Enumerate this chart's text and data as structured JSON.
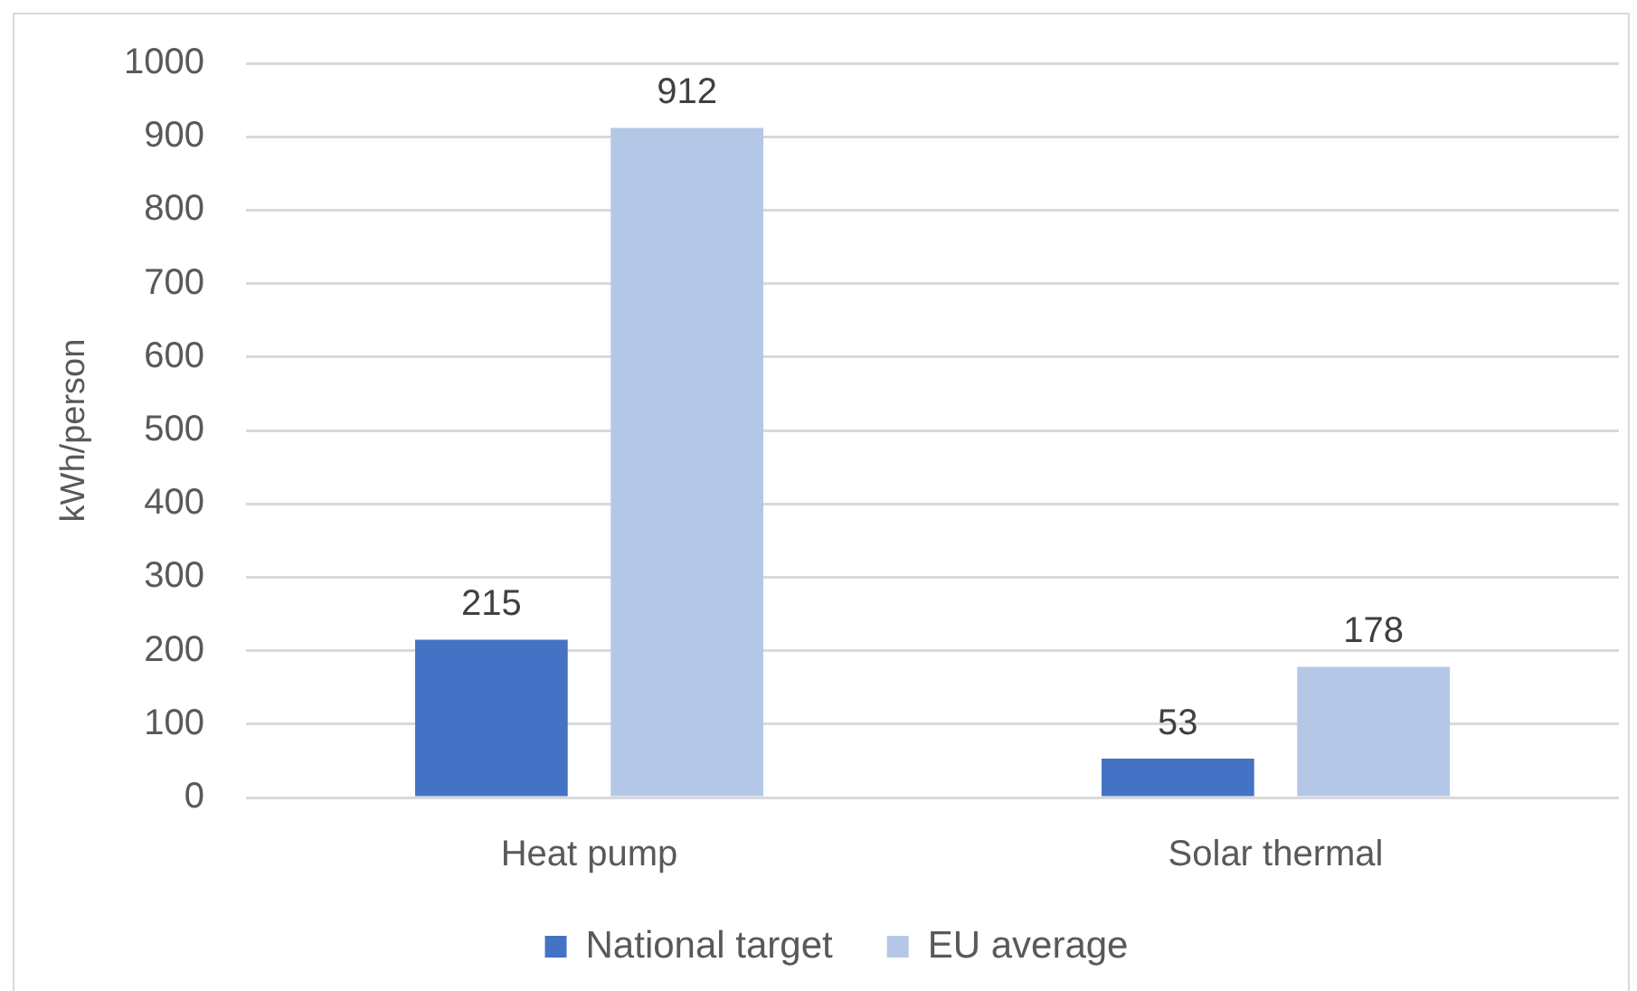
{
  "chart_data": {
    "type": "bar",
    "ylabel": "kWh/person",
    "categories": [
      "Heat pump",
      "Solar thermal"
    ],
    "series": [
      {
        "name": "National target",
        "color": "#4472c4",
        "values": [
          215,
          53
        ]
      },
      {
        "name": "EU average",
        "color": "#b4c7e7",
        "values": [
          912,
          178
        ]
      }
    ],
    "ylim": [
      0,
      1000
    ],
    "yticks": [
      0,
      100,
      200,
      300,
      400,
      500,
      600,
      700,
      800,
      900,
      1000
    ],
    "grid": "y",
    "legend": "bottom",
    "data_labels": true
  }
}
